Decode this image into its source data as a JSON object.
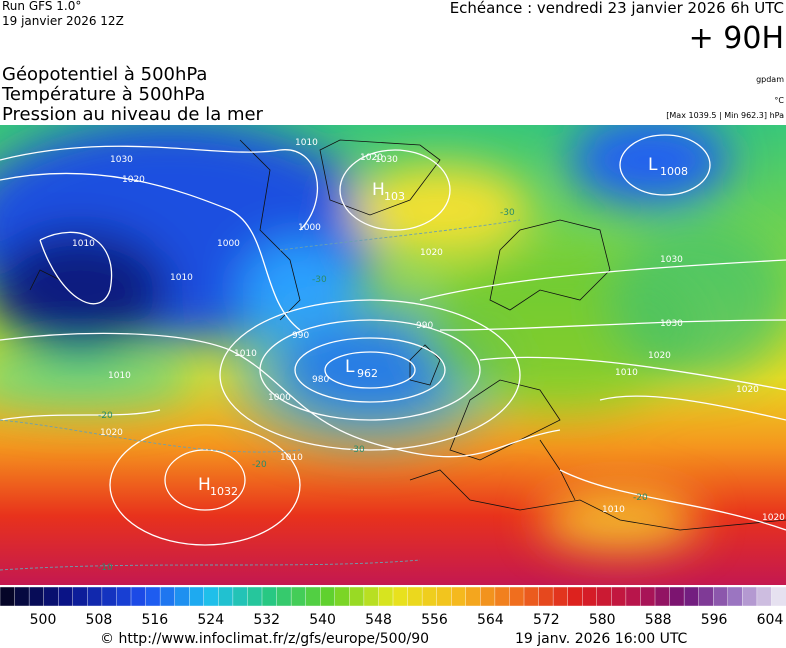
{
  "header": {
    "run": "Run GFS 1.0°",
    "date": "19 janvier 2026 12Z",
    "forecast": "Echéance : vendredi 23 janvier 2026 6h UTC",
    "lead": "+ 90H"
  },
  "titles": [
    "Géopotentiel à 500hPa",
    "Température à 500hPa",
    "Pression au niveau de la mer"
  ],
  "units": [
    "gpdam",
    "°C",
    "[Max 1039.5 | Min 962.3] hPa"
  ],
  "centers": [
    {
      "letter": "L",
      "value": "962"
    },
    {
      "letter": "L",
      "value": "1008"
    },
    {
      "letter": "H",
      "value": "1032"
    },
    {
      "letter": "H",
      "value": "103"
    }
  ],
  "contour_labels": [
    "1030",
    "1020",
    "1010",
    "1000",
    "1010",
    "990",
    "980",
    "1000",
    "1010",
    "1020",
    "1020",
    "1010",
    "1000",
    "990",
    "1030",
    "1020",
    "1030",
    "1030",
    "1020",
    "1010",
    "1020",
    "1020",
    "1010",
    "1010",
    "1010"
  ],
  "temperature_labels": [
    "-30",
    "-30",
    "-20",
    "-20",
    "-30",
    "-10",
    "-20"
  ],
  "legend": {
    "ticks": [
      500,
      508,
      516,
      524,
      532,
      540,
      548,
      556,
      564,
      572,
      580,
      588,
      596,
      604
    ]
  },
  "footer": {
    "url": "© http://www.infoclimat.fr/z/gfs/europe/500/90",
    "generated": "19 janv. 2026 16:00 UTC"
  }
}
